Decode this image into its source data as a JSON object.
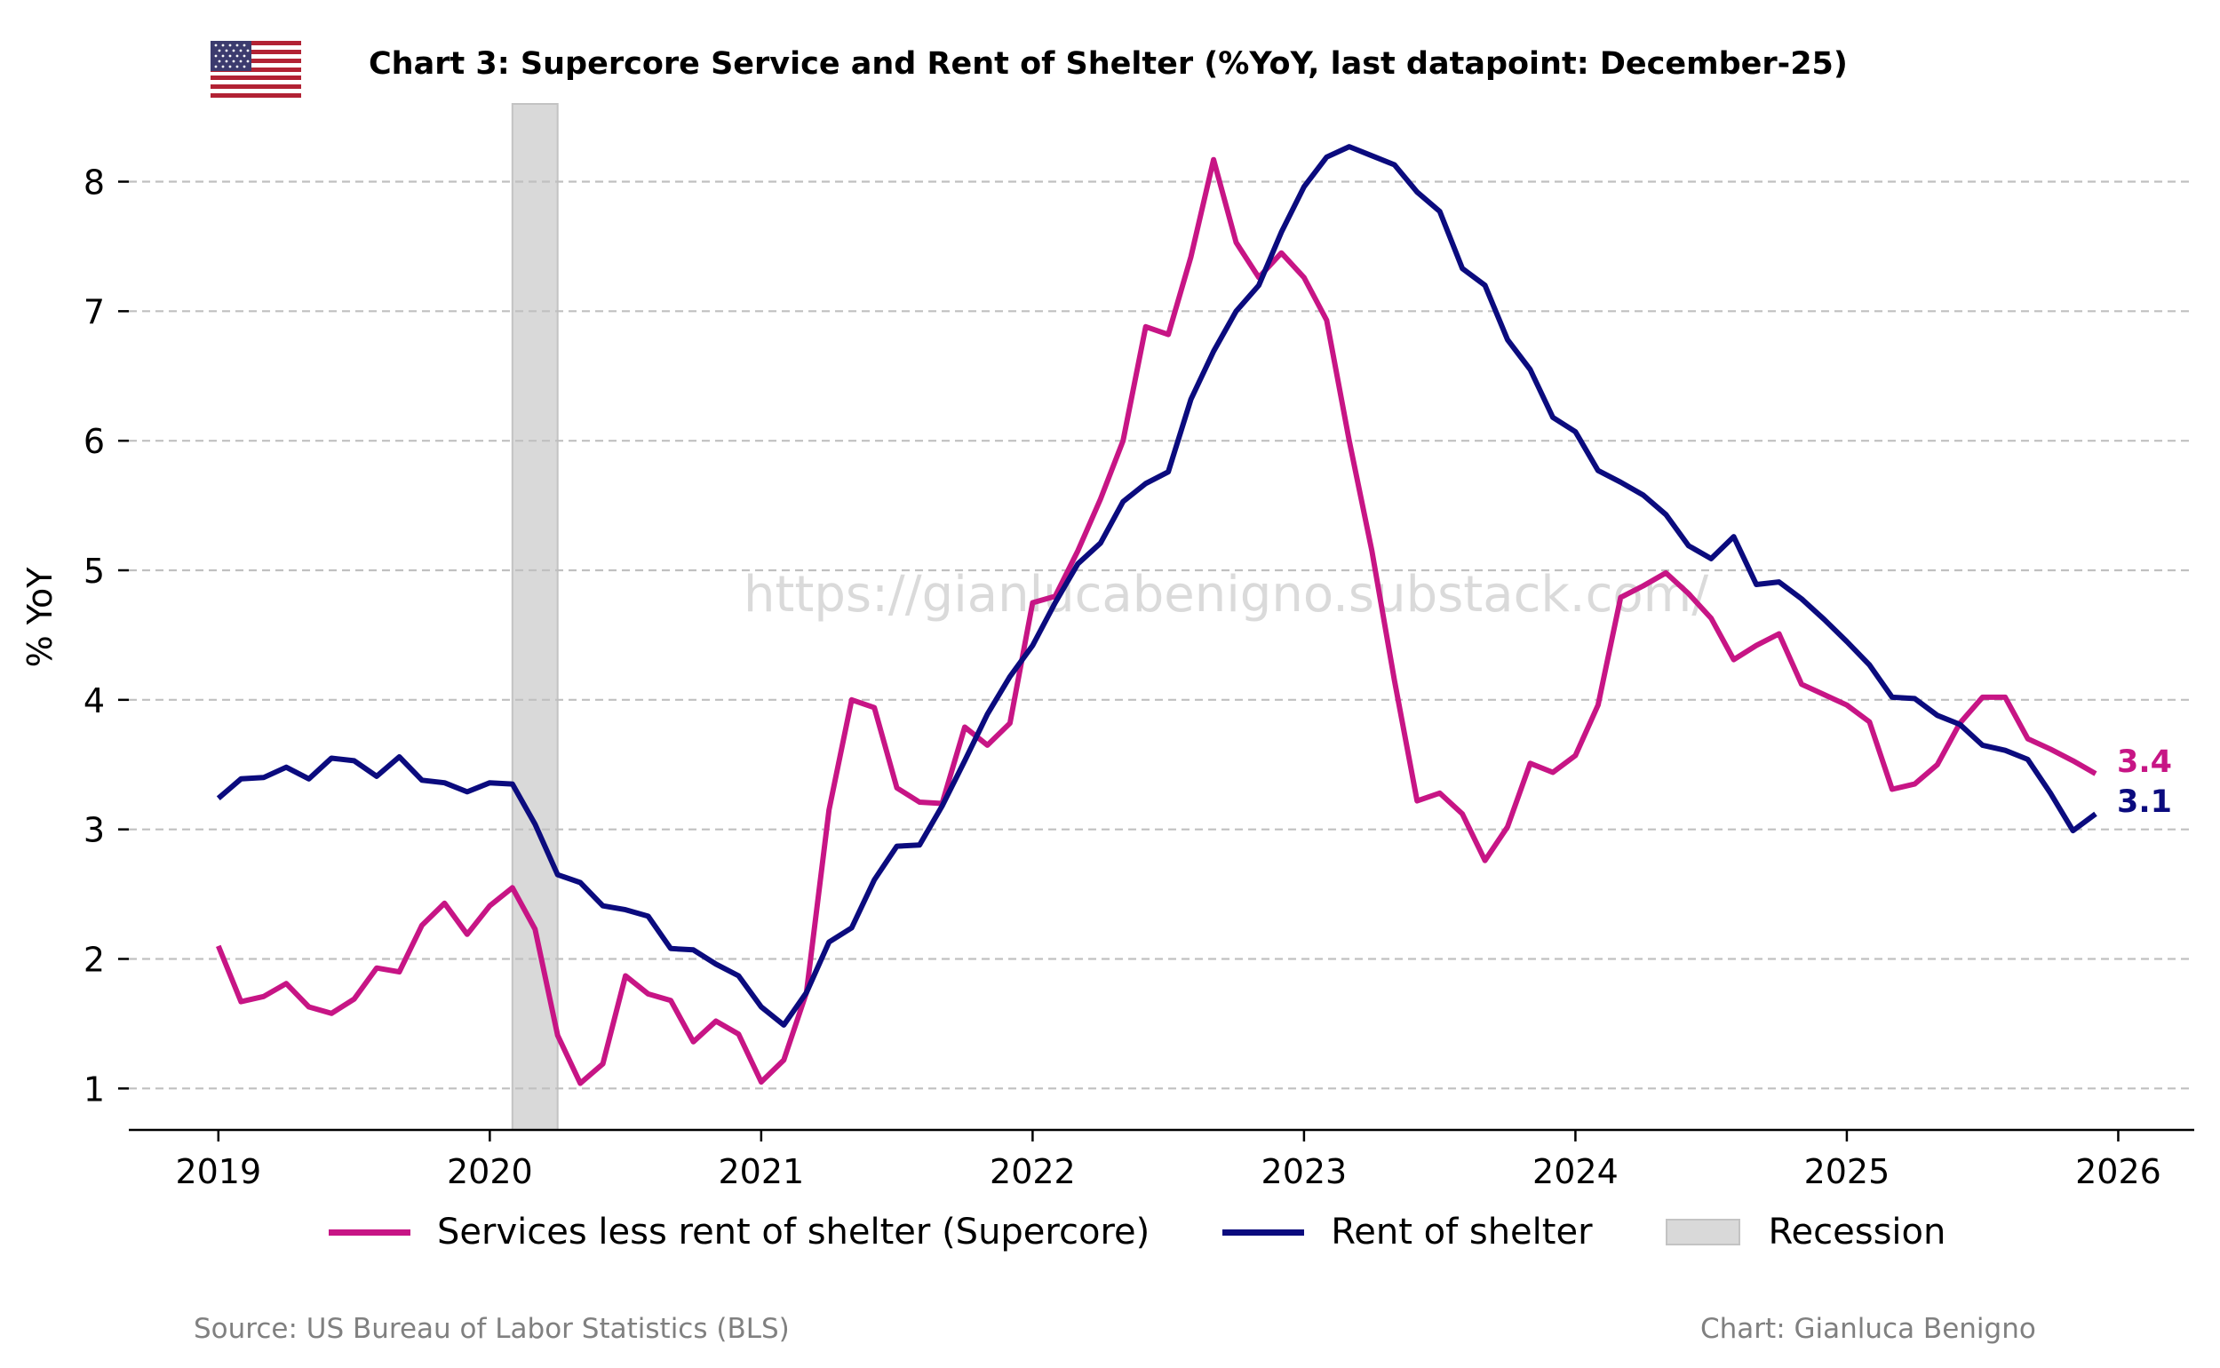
{
  "title": "Chart 3: Supercore Service and Rent of Shelter (%YoY, last datapoint: December-25)",
  "flag_icon": "us-flag-icon",
  "watermark": "https://gianlucabenigno.substack.com/",
  "source": "Source: US Bureau of Labor Statistics (BLS)",
  "credit": "Chart: Gianluca Benigno",
  "chart_data": {
    "type": "line",
    "ylabel": "% YoY",
    "xlabel": "",
    "x_start": "2019-01",
    "x_frequency": "monthly",
    "xlim": [
      2018.67,
      2026.28
    ],
    "ylim": [
      0.68,
      8.6
    ],
    "xticks": [
      2019,
      2020,
      2021,
      2022,
      2023,
      2024,
      2025,
      2026
    ],
    "yticks": [
      1,
      2,
      3,
      4,
      5,
      6,
      7,
      8
    ],
    "grid": "horizontal dashed",
    "legend_position": "bottom",
    "recession": {
      "label": "Recession",
      "start": "2020-02",
      "end": "2020-04",
      "color": "#d9d9d9"
    },
    "series": [
      {
        "name": "Services less rent of shelter (Supercore)",
        "color": "#c71585",
        "end_label": "3.4",
        "values": [
          2.1,
          1.67,
          1.71,
          1.81,
          1.63,
          1.58,
          1.69,
          1.93,
          1.9,
          2.26,
          2.43,
          2.19,
          2.41,
          2.55,
          2.23,
          1.41,
          1.04,
          1.19,
          1.87,
          1.73,
          1.68,
          1.36,
          1.52,
          1.42,
          1.05,
          1.22,
          1.74,
          3.15,
          4.0,
          3.94,
          3.32,
          3.21,
          3.2,
          3.79,
          3.65,
          3.82,
          4.75,
          4.8,
          5.15,
          5.55,
          6.0,
          6.88,
          6.82,
          7.42,
          8.17,
          7.53,
          7.26,
          7.45,
          7.26,
          6.93,
          6.0,
          5.15,
          4.15,
          3.22,
          3.28,
          3.12,
          2.76,
          3.02,
          3.51,
          3.44,
          3.57,
          3.96,
          4.79,
          4.88,
          4.98,
          4.82,
          4.63,
          4.31,
          4.42,
          4.51,
          4.12,
          4.04,
          3.96,
          3.83,
          3.31,
          3.35,
          3.5,
          3.82,
          4.02,
          4.02,
          3.7,
          3.62,
          3.53,
          3.43
        ]
      },
      {
        "name": "Rent of shelter",
        "color": "#0b0b7e",
        "end_label": "3.1",
        "values": [
          3.24,
          3.39,
          3.4,
          3.48,
          3.39,
          3.55,
          3.53,
          3.41,
          3.56,
          3.38,
          3.36,
          3.29,
          3.36,
          3.35,
          3.04,
          2.65,
          2.59,
          2.41,
          2.38,
          2.33,
          2.08,
          2.07,
          1.96,
          1.87,
          1.63,
          1.49,
          1.74,
          2.13,
          2.24,
          2.61,
          2.87,
          2.88,
          3.18,
          3.53,
          3.89,
          4.18,
          4.42,
          4.75,
          5.05,
          5.21,
          5.53,
          5.67,
          5.76,
          6.32,
          6.69,
          7.0,
          7.2,
          7.61,
          7.96,
          8.19,
          8.27,
          8.2,
          8.13,
          7.92,
          7.77,
          7.33,
          7.2,
          6.78,
          6.55,
          6.18,
          6.07,
          5.77,
          5.68,
          5.58,
          5.43,
          5.19,
          5.09,
          5.26,
          4.89,
          4.91,
          4.78,
          4.62,
          4.45,
          4.27,
          4.02,
          4.01,
          3.88,
          3.81,
          3.65,
          3.61,
          3.54,
          3.28,
          2.99,
          3.12
        ]
      }
    ]
  }
}
